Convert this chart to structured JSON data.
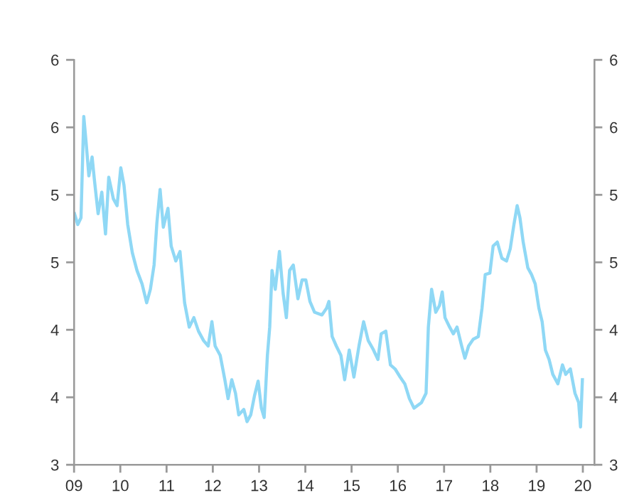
{
  "chart_data": {
    "type": "line",
    "x": [
      2009.01,
      2009.08,
      2009.15,
      2009.21,
      2009.26,
      2009.32,
      2009.39,
      2009.44,
      2009.52,
      2009.6,
      2009.68,
      2009.75,
      2009.85,
      2009.93,
      2010.01,
      2010.08,
      2010.16,
      2010.26,
      2010.36,
      2010.47,
      2010.57,
      2010.65,
      2010.73,
      2010.79,
      2010.86,
      2010.93,
      2011.03,
      2011.1,
      2011.2,
      2011.29,
      2011.39,
      2011.49,
      2011.59,
      2011.69,
      2011.8,
      2011.9,
      2011.98,
      2012.05,
      2012.16,
      2012.26,
      2012.33,
      2012.41,
      2012.49,
      2012.56,
      2012.67,
      2012.74,
      2012.82,
      2012.9,
      2012.98,
      2013.05,
      2013.11,
      2013.18,
      2013.23,
      2013.28,
      2013.35,
      2013.44,
      2013.52,
      2013.59,
      2013.66,
      2013.74,
      2013.84,
      2013.93,
      2014.01,
      2014.1,
      2014.2,
      2014.36,
      2014.46,
      2014.51,
      2014.58,
      2014.67,
      2014.77,
      2014.85,
      2014.95,
      2015.05,
      2015.16,
      2015.26,
      2015.36,
      2015.46,
      2015.57,
      2015.64,
      2015.74,
      2015.84,
      2015.94,
      2016.05,
      2016.15,
      2016.25,
      2016.35,
      2016.51,
      2016.61,
      2016.66,
      2016.73,
      2016.82,
      2016.9,
      2016.96,
      2017.02,
      2017.12,
      2017.2,
      2017.28,
      2017.38,
      2017.45,
      2017.53,
      2017.63,
      2017.74,
      2017.82,
      2017.89,
      2017.99,
      2018.06,
      2018.15,
      2018.25,
      2018.35,
      2018.43,
      2018.51,
      2018.58,
      2018.64,
      2018.71,
      2018.81,
      2018.89,
      2018.97,
      2019.05,
      2019.12,
      2019.19,
      2019.27,
      2019.35,
      2019.46,
      2019.56,
      2019.63,
      2019.73,
      2019.83,
      2019.91,
      2019.95,
      2019.99
    ],
    "series": [
      {
        "color": "#8fd8f5",
        "values": [
          4.86,
          4.78,
          4.83,
          5.58,
          5.39,
          5.14,
          5.28,
          5.11,
          4.86,
          5.02,
          4.71,
          5.13,
          4.97,
          4.92,
          5.2,
          5.07,
          4.78,
          4.57,
          4.44,
          4.34,
          4.2,
          4.3,
          4.48,
          4.79,
          5.04,
          4.76,
          4.9,
          4.62,
          4.51,
          4.58,
          4.2,
          4.02,
          4.09,
          3.99,
          3.92,
          3.88,
          4.06,
          3.88,
          3.81,
          3.63,
          3.49,
          3.63,
          3.53,
          3.37,
          3.41,
          3.32,
          3.37,
          3.51,
          3.62,
          3.42,
          3.35,
          3.81,
          4.02,
          4.44,
          4.3,
          4.58,
          4.27,
          4.09,
          4.44,
          4.48,
          4.23,
          4.37,
          4.37,
          4.21,
          4.13,
          4.11,
          4.16,
          4.21,
          3.95,
          3.88,
          3.81,
          3.63,
          3.85,
          3.65,
          3.88,
          4.06,
          3.92,
          3.86,
          3.78,
          3.97,
          3.99,
          3.74,
          3.71,
          3.65,
          3.6,
          3.49,
          3.42,
          3.46,
          3.53,
          4.02,
          4.3,
          4.13,
          4.18,
          4.28,
          4.09,
          4.02,
          3.97,
          4.02,
          3.88,
          3.79,
          3.88,
          3.93,
          3.95,
          4.16,
          4.41,
          4.42,
          4.62,
          4.65,
          4.53,
          4.51,
          4.6,
          4.78,
          4.92,
          4.83,
          4.65,
          4.46,
          4.41,
          4.34,
          4.16,
          4.06,
          3.85,
          3.78,
          3.67,
          3.6,
          3.74,
          3.67,
          3.71,
          3.53,
          3.46,
          3.28,
          3.63
        ]
      }
    ],
    "xlim": [
      2009,
      2020.25
    ],
    "xticks": [
      {
        "value": 2009,
        "label": "09"
      },
      {
        "value": 2010,
        "label": "10"
      },
      {
        "value": 2011,
        "label": "11"
      },
      {
        "value": 2012,
        "label": "12"
      },
      {
        "value": 2013,
        "label": "13"
      },
      {
        "value": 2014,
        "label": "14"
      },
      {
        "value": 2015,
        "label": "15"
      },
      {
        "value": 2016,
        "label": "16"
      },
      {
        "value": 2017,
        "label": "17"
      },
      {
        "value": 2018,
        "label": "18"
      },
      {
        "value": 2019,
        "label": "19"
      },
      {
        "value": 2020,
        "label": "20"
      }
    ],
    "ylim": [
      3,
      6
    ],
    "yticks": [
      3,
      {
        "value": 3.5,
        "label": "4"
      },
      4,
      {
        "value": 4.5,
        "label": "5"
      },
      5,
      {
        "value": 5.5,
        "label": "6"
      },
      6
    ],
    "y2lim": [
      3,
      6
    ],
    "y2ticks": [
      3,
      {
        "value": 3.5,
        "label": "4"
      },
      4,
      {
        "value": 4.5,
        "label": "5"
      },
      5,
      {
        "value": 5.5,
        "label": "6"
      },
      6
    ],
    "marker": "none",
    "line_style": "solid"
  }
}
